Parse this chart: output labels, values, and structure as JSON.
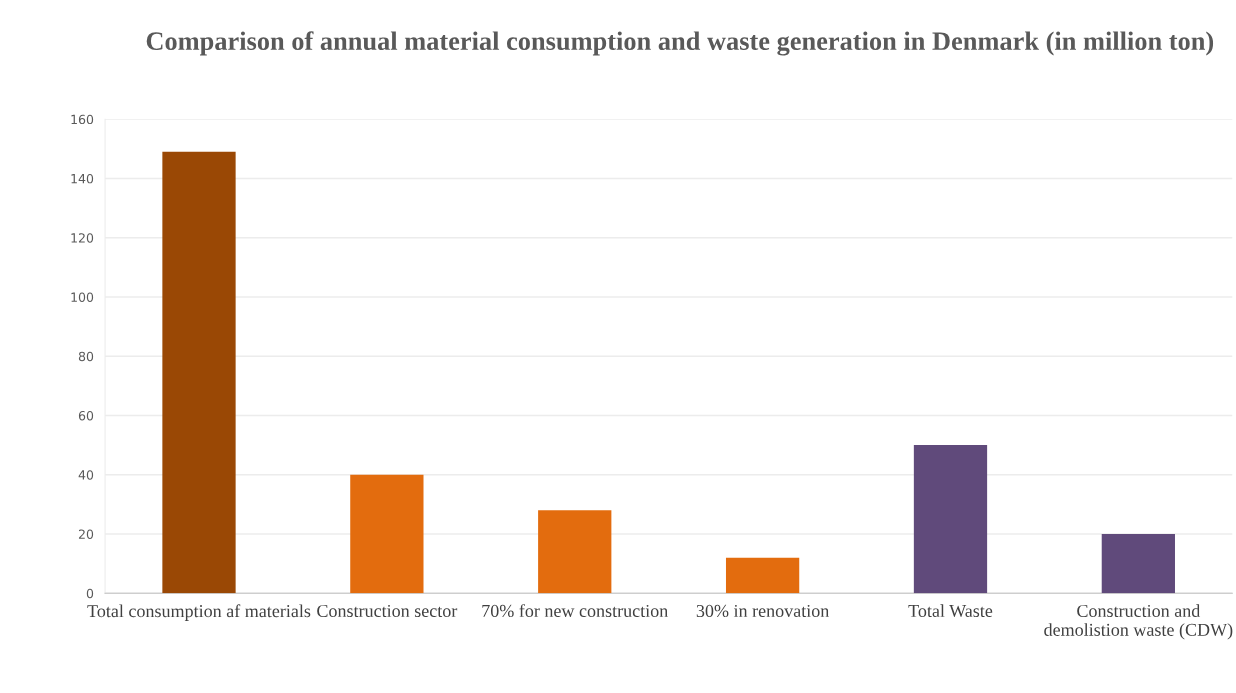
{
  "chart_data": {
    "type": "bar",
    "title": "Comparison of annual material consumption and waste generation in Denmark (in million ton)",
    "categories": [
      "Total consumption af materials",
      "Construction sector",
      "70% for new construction",
      "30% in renovation",
      "Total Waste",
      "Construction and demolistion waste (CDW)"
    ],
    "values": [
      149,
      40,
      28,
      12,
      50,
      20
    ],
    "colors": [
      "#9a4805",
      "#e36c0e",
      "#e36c0e",
      "#e36c0e",
      "#604a7b",
      "#604a7b"
    ],
    "ylim": [
      0,
      160
    ],
    "yticks": [
      0,
      20,
      40,
      60,
      80,
      100,
      120,
      140,
      160
    ],
    "grid": "y"
  }
}
